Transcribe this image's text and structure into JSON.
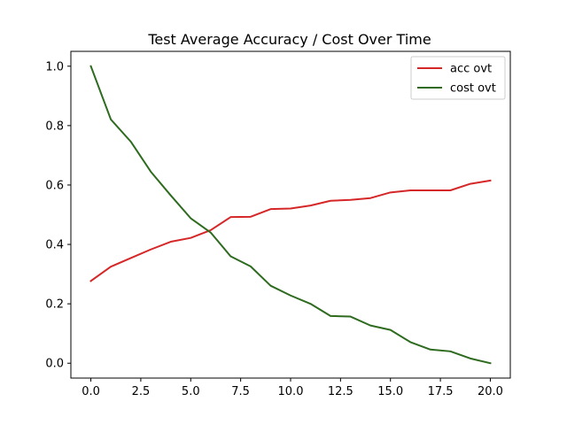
{
  "chart_data": {
    "type": "line",
    "title": "Test Average Accuracy / Cost Over Time",
    "xlabel": "",
    "ylabel": "",
    "xlim": [
      -1,
      21
    ],
    "ylim": [
      -0.05,
      1.05
    ],
    "x_ticks": [
      0.0,
      2.5,
      5.0,
      7.5,
      10.0,
      12.5,
      15.0,
      17.5,
      20.0
    ],
    "x_tick_labels": [
      "0.0",
      "2.5",
      "5.0",
      "7.5",
      "10.0",
      "12.5",
      "15.0",
      "17.5",
      "20.0"
    ],
    "y_ticks": [
      0.0,
      0.2,
      0.4,
      0.6,
      0.8,
      1.0
    ],
    "y_tick_labels": [
      "0.0",
      "0.2",
      "0.4",
      "0.6",
      "0.8",
      "1.0"
    ],
    "grid": false,
    "legend_position": "top-right",
    "x": [
      0,
      1,
      2,
      3,
      4,
      5,
      6,
      7,
      8,
      9,
      10,
      11,
      12,
      13,
      14,
      15,
      16,
      17,
      18,
      19,
      20
    ],
    "series": [
      {
        "name": "acc ovt",
        "color": "#d62728",
        "values": [
          0.277,
          0.325,
          0.354,
          0.383,
          0.409,
          0.422,
          0.448,
          0.492,
          0.493,
          0.519,
          0.521,
          0.531,
          0.547,
          0.55,
          0.556,
          0.575,
          0.582,
          0.582,
          0.582,
          0.604,
          0.615
        ]
      },
      {
        "name": "cost ovt",
        "color": "#2e6b1f",
        "values": [
          1.0,
          0.821,
          0.746,
          0.645,
          0.565,
          0.488,
          0.44,
          0.36,
          0.326,
          0.261,
          0.228,
          0.2,
          0.159,
          0.157,
          0.127,
          0.112,
          0.071,
          0.046,
          0.04,
          0.016,
          0.0
        ]
      }
    ]
  }
}
